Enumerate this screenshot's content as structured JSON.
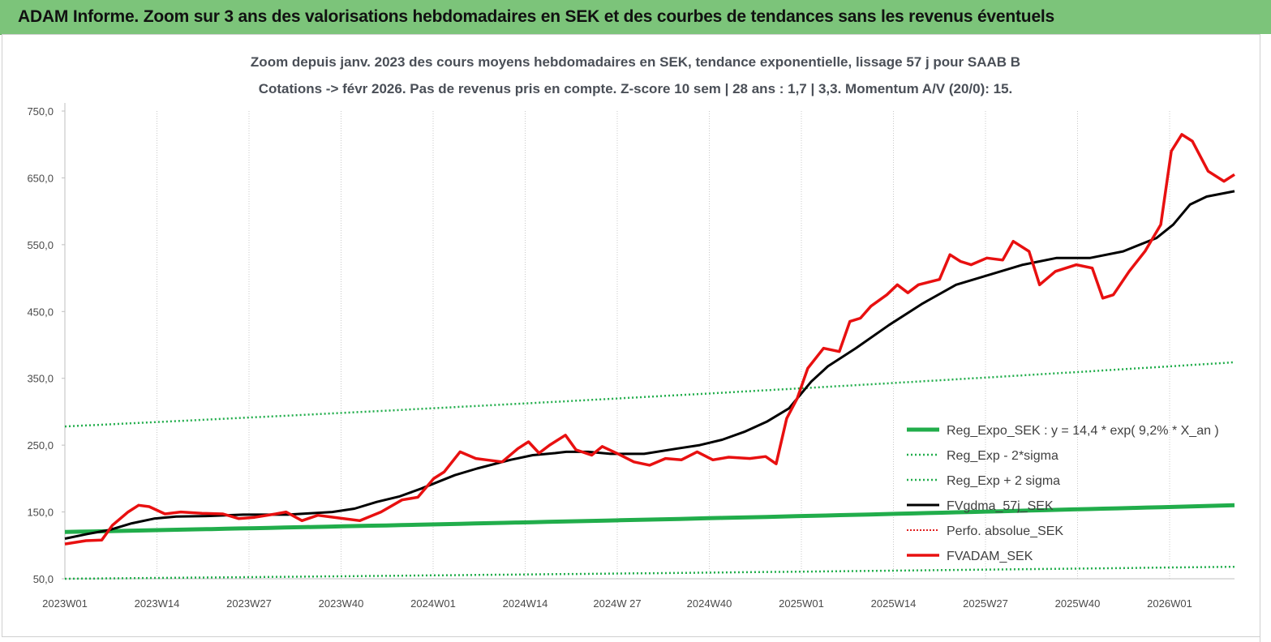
{
  "banner": {
    "title": "ADAM Informe. Zoom sur 3 ans des valorisations hebdomadaires en SEK et des courbes de tendances sans les revenus éventuels"
  },
  "colors": {
    "banner_bg": "#7cc47a",
    "reg_expo": "#21ad4b",
    "sigma": "#21ad4b",
    "fvgdma": "#000000",
    "perfo": "#e02020",
    "fvadam": "#e81010"
  },
  "chart_data": {
    "type": "line",
    "title": "Zoom depuis janv. 2023 des cours moyens hebdomadaires en SEK, tendance exponentielle, lissage 57 j pour SAAB B",
    "subtitle": "Cotations -> févr 2026.  Pas de revenus pris en compte. Z-score 10 sem | 28 ans : 1,7 | 3,3. Momentum A/V (20/0): 15.",
    "ylim": [
      50,
      750
    ],
    "yticks": [
      "750,0",
      "650,0",
      "550,0",
      "450,0",
      "350,0",
      "250,0",
      "150,0",
      "50,0"
    ],
    "ytick_values": [
      750,
      650,
      550,
      450,
      350,
      250,
      150,
      50
    ],
    "xticks": [
      "2023W01",
      "2023W14",
      "2023W27",
      "2023W40",
      "2024W01",
      "2024W14",
      "2024W 27",
      "2024W40",
      "2025W01",
      "2025W14",
      "2025W27",
      "2025W40",
      "2026W01"
    ],
    "week_count": 169,
    "grid": "vertical dotted at ticks",
    "legend_position": "right",
    "series": [
      {
        "name": "Reg_Expo_SEK : y = 14,4 * exp( 9,2% *  X_an )",
        "style": "thick-solid",
        "start": 120,
        "end": 160
      },
      {
        "name": "Reg_Exp - 2*sigma",
        "style": "dotted",
        "start": 50,
        "end": 68
      },
      {
        "name": "Reg_Exp + 2 sigma",
        "style": "dotted",
        "start": 278,
        "end": 374
      },
      {
        "name": "FVgdma_57j_SEK",
        "style": "solid",
        "points": [
          [
            0,
            110
          ],
          [
            4,
            117
          ],
          [
            8,
            123
          ],
          [
            12,
            133
          ],
          [
            16,
            140
          ],
          [
            20,
            143
          ],
          [
            26,
            144
          ],
          [
            32,
            146
          ],
          [
            40,
            146
          ],
          [
            44,
            148
          ],
          [
            48,
            150
          ],
          [
            52,
            155
          ],
          [
            56,
            165
          ],
          [
            60,
            173
          ],
          [
            64,
            185
          ],
          [
            70,
            205
          ],
          [
            74,
            215
          ],
          [
            80,
            228
          ],
          [
            84,
            235
          ],
          [
            88,
            238
          ],
          [
            90,
            240
          ],
          [
            94,
            240
          ],
          [
            98,
            237
          ],
          [
            104,
            237
          ],
          [
            110,
            245
          ],
          [
            114,
            250
          ],
          [
            118,
            258
          ],
          [
            122,
            270
          ],
          [
            126,
            285
          ],
          [
            130,
            305
          ],
          [
            132,
            325
          ],
          [
            134,
            345
          ],
          [
            137,
            368
          ],
          [
            142,
            395
          ],
          [
            148,
            430
          ],
          [
            154,
            462
          ],
          [
            160,
            490
          ],
          [
            166,
            505
          ],
          [
            172,
            520
          ],
          [
            178,
            530
          ],
          [
            184,
            530
          ],
          [
            190,
            540
          ],
          [
            196,
            560
          ],
          [
            199,
            580
          ],
          [
            202,
            610
          ],
          [
            205,
            622
          ],
          [
            210,
            630
          ]
        ]
      },
      {
        "name": "Perfo. absolue_SEK",
        "style": "dotted"
      },
      {
        "name": "FVADAM_SEK",
        "style": "solid",
        "points": [
          [
            0,
            102
          ],
          [
            4,
            107
          ],
          [
            7,
            108
          ],
          [
            9,
            130
          ],
          [
            12,
            150
          ],
          [
            14,
            160
          ],
          [
            16,
            158
          ],
          [
            19,
            147
          ],
          [
            22,
            150
          ],
          [
            26,
            148
          ],
          [
            30,
            147
          ],
          [
            33,
            140
          ],
          [
            36,
            142
          ],
          [
            40,
            147
          ],
          [
            42,
            150
          ],
          [
            45,
            137
          ],
          [
            48,
            145
          ],
          [
            52,
            141
          ],
          [
            56,
            137
          ],
          [
            60,
            150
          ],
          [
            64,
            168
          ],
          [
            67,
            172
          ],
          [
            70,
            200
          ],
          [
            72,
            210
          ],
          [
            75,
            240
          ],
          [
            78,
            230
          ],
          [
            80,
            228
          ],
          [
            83,
            225
          ],
          [
            86,
            245
          ],
          [
            88,
            255
          ],
          [
            90,
            238
          ],
          [
            92,
            250
          ],
          [
            95,
            265
          ],
          [
            97,
            243
          ],
          [
            100,
            235
          ],
          [
            102,
            248
          ],
          [
            105,
            237
          ],
          [
            108,
            225
          ],
          [
            111,
            220
          ],
          [
            114,
            230
          ],
          [
            117,
            228
          ],
          [
            120,
            240
          ],
          [
            123,
            228
          ],
          [
            126,
            232
          ],
          [
            130,
            230
          ],
          [
            133,
            233
          ],
          [
            135,
            222
          ],
          [
            137,
            290
          ],
          [
            139,
            320
          ],
          [
            141,
            365
          ],
          [
            144,
            395
          ],
          [
            147,
            390
          ],
          [
            149,
            435
          ],
          [
            151,
            440
          ],
          [
            153,
            458
          ],
          [
            156,
            475
          ],
          [
            158,
            490
          ],
          [
            160,
            478
          ],
          [
            162,
            490
          ],
          [
            166,
            498
          ],
          [
            168,
            535
          ],
          [
            170,
            525
          ],
          [
            172,
            520
          ],
          [
            175,
            530
          ],
          [
            178,
            527
          ],
          [
            180,
            555
          ],
          [
            183,
            540
          ],
          [
            185,
            490
          ],
          [
            188,
            510
          ],
          [
            192,
            520
          ],
          [
            195,
            515
          ],
          [
            197,
            470
          ],
          [
            199,
            475
          ],
          [
            202,
            510
          ],
          [
            205,
            540
          ],
          [
            208,
            580
          ],
          [
            210,
            690
          ],
          [
            212,
            715
          ],
          [
            214,
            705
          ],
          [
            217,
            660
          ],
          [
            220,
            645
          ],
          [
            222,
            655
          ]
        ]
      }
    ]
  },
  "legend": {
    "items": [
      "Reg_Expo_SEK : y = 14,4 * exp( 9,2% *  X_an )",
      "Reg_Exp - 2*sigma",
      "Reg_Exp + 2 sigma",
      "FVgdma_57j_SEK",
      "Perfo. absolue_SEK",
      "FVADAM_SEK"
    ]
  }
}
